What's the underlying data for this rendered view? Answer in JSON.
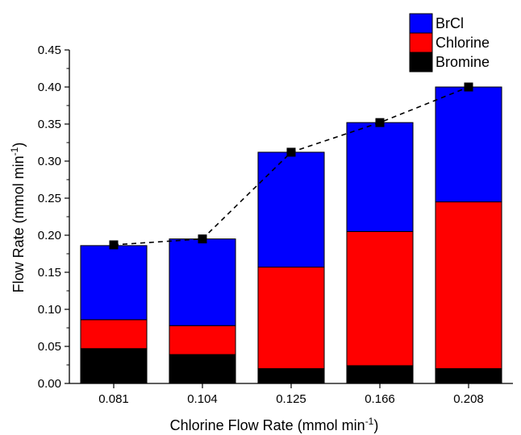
{
  "chart_data": {
    "type": "bar",
    "stacked": true,
    "categories": [
      "0.081",
      "0.104",
      "0.125",
      "0.166",
      "0.208"
    ],
    "series": [
      {
        "name": "Bromine",
        "values": [
          0.047,
          0.039,
          0.02,
          0.024,
          0.02
        ],
        "color": "#000000"
      },
      {
        "name": "Chlorine",
        "values": [
          0.039,
          0.039,
          0.137,
          0.181,
          0.225
        ],
        "color": "#ff0000"
      },
      {
        "name": "BrCl",
        "values": [
          0.1,
          0.117,
          0.155,
          0.147,
          0.155
        ],
        "color": "#0000ff"
      }
    ],
    "total_line": {
      "values": [
        0.187,
        0.195,
        0.312,
        0.352,
        0.4
      ],
      "style": "dashed",
      "marker": "square",
      "color": "#000000"
    },
    "xlabel_main": "Chlorine Flow Rate (mmol min",
    "xlabel_sup": "-1",
    "xlabel_end": ")",
    "ylabel_main": "Flow Rate (mmol min",
    "ylabel_sup": "-1",
    "ylabel_end": ")",
    "ylim": [
      0,
      0.45
    ],
    "yticks": [
      "0.00",
      "0.05",
      "0.10",
      "0.15",
      "0.20",
      "0.25",
      "0.30",
      "0.35",
      "0.40",
      "0.45"
    ],
    "grid": false,
    "legend_position": "top-right",
    "legend": [
      {
        "name": "BrCl",
        "color": "#0000ff"
      },
      {
        "name": "Chlorine",
        "color": "#ff0000"
      },
      {
        "name": "Bromine",
        "color": "#000000"
      }
    ]
  }
}
